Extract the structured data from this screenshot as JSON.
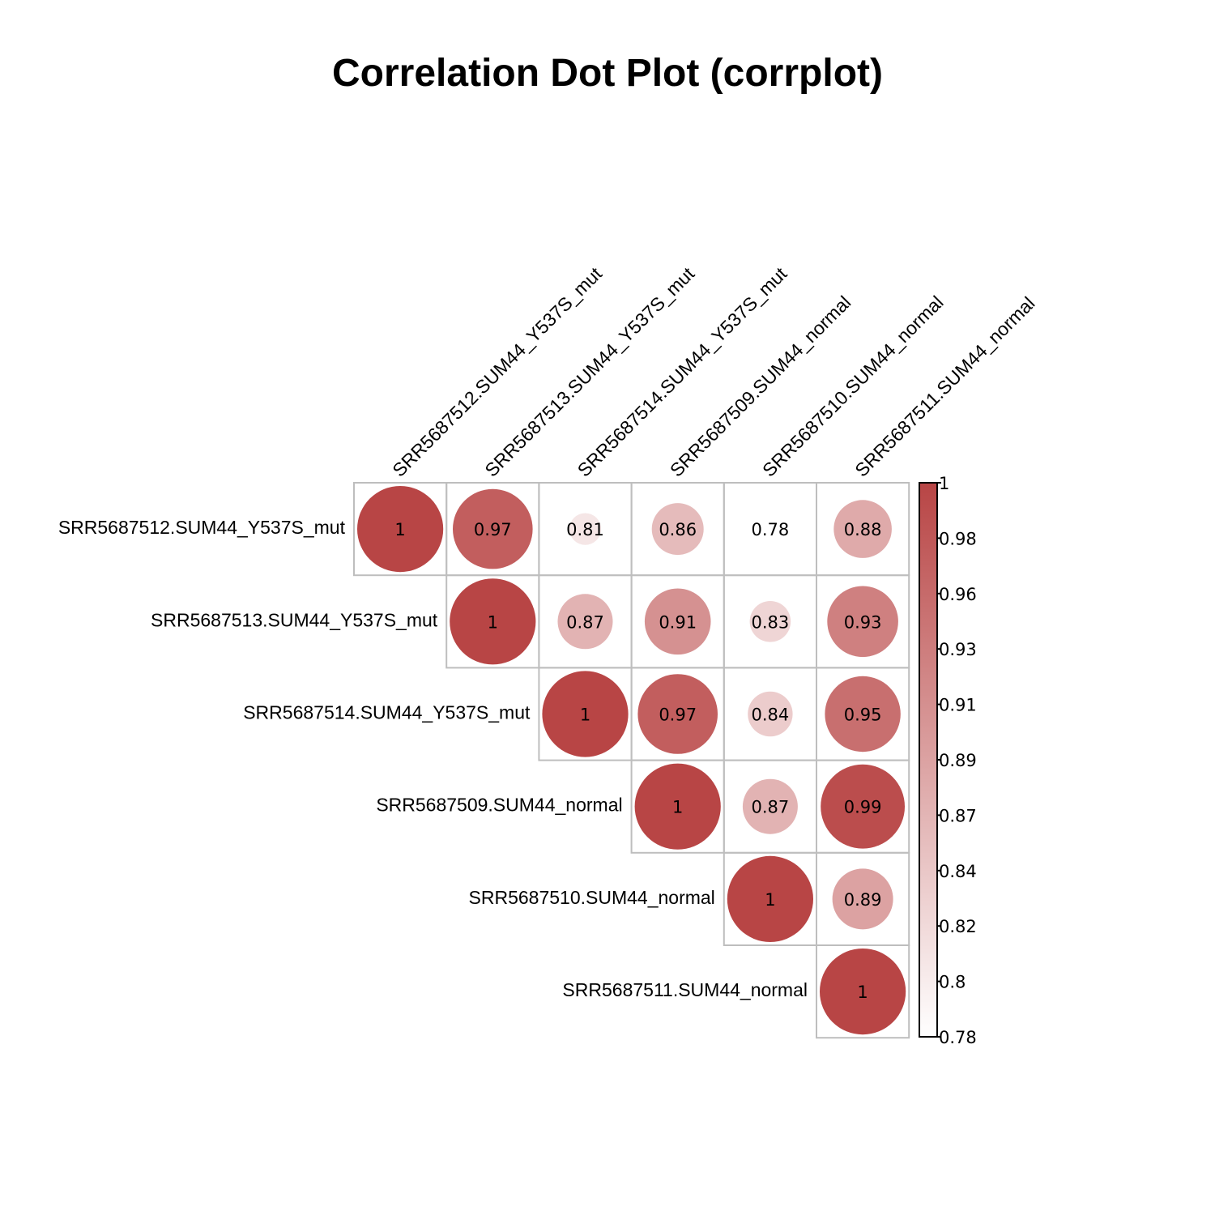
{
  "chart_data": {
    "type": "heatmap",
    "title": "Correlation Dot Plot (corrplot)",
    "layout": "upper-triangle",
    "variables": [
      "SRR5687512.SUM44_Y537S_mut",
      "SRR5687513.SUM44_Y537S_mut",
      "SRR5687514.SUM44_Y537S_mut",
      "SRR5687509.SUM44_normal",
      "SRR5687510.SUM44_normal",
      "SRR5687511.SUM44_normal"
    ],
    "matrix_labels": [
      [
        "1",
        "0.97",
        "0.81",
        "0.86",
        "0.78",
        "0.88"
      ],
      [
        null,
        "1",
        "0.87",
        "0.91",
        "0.83",
        "0.93"
      ],
      [
        null,
        null,
        "1",
        "0.97",
        "0.84",
        "0.95"
      ],
      [
        null,
        null,
        null,
        "1",
        "0.87",
        "0.99"
      ],
      [
        null,
        null,
        null,
        null,
        "1",
        "0.89"
      ],
      [
        null,
        null,
        null,
        null,
        null,
        "1"
      ]
    ],
    "colorbar": {
      "min": 0.78,
      "max": 1,
      "tick_labels": [
        "1",
        "0.98",
        "0.96",
        "0.93",
        "0.91",
        "0.89",
        "0.87",
        "0.84",
        "0.82",
        "0.8",
        "0.78"
      ],
      "low_color": "#FFFFFF",
      "high_color": "#B84545"
    },
    "grid_color": "#BEBEBE"
  }
}
